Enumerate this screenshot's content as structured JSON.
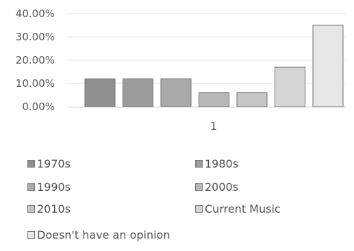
{
  "chart_data": {
    "type": "bar",
    "categories": [
      "1"
    ],
    "series": [
      {
        "name": "1970s",
        "values": [
          0.12
        ],
        "color": "#909090"
      },
      {
        "name": "1980s",
        "values": [
          0.12
        ],
        "color": "#9b9b9b"
      },
      {
        "name": "1990s",
        "values": [
          0.12
        ],
        "color": "#a9a9a9"
      },
      {
        "name": "2000s",
        "values": [
          0.06
        ],
        "color": "#b7b7b7"
      },
      {
        "name": "2010s",
        "values": [
          0.06
        ],
        "color": "#c6c6c6"
      },
      {
        "name": "Current Music",
        "values": [
          0.17
        ],
        "color": "#d5d5d5"
      },
      {
        "name": "Doesn't have an opinion",
        "values": [
          0.35
        ],
        "color": "#e7e7e7"
      }
    ],
    "ylim": [
      0,
      0.4
    ],
    "yticks": [
      0,
      0.1,
      0.2,
      0.3,
      0.4
    ],
    "ytick_labels": [
      "0.00%",
      "10.00%",
      "20.00%",
      "30.00%",
      "40.00%"
    ],
    "grid": true,
    "legend_position": "bottom",
    "title": "",
    "xlabel": "",
    "ylabel": ""
  }
}
